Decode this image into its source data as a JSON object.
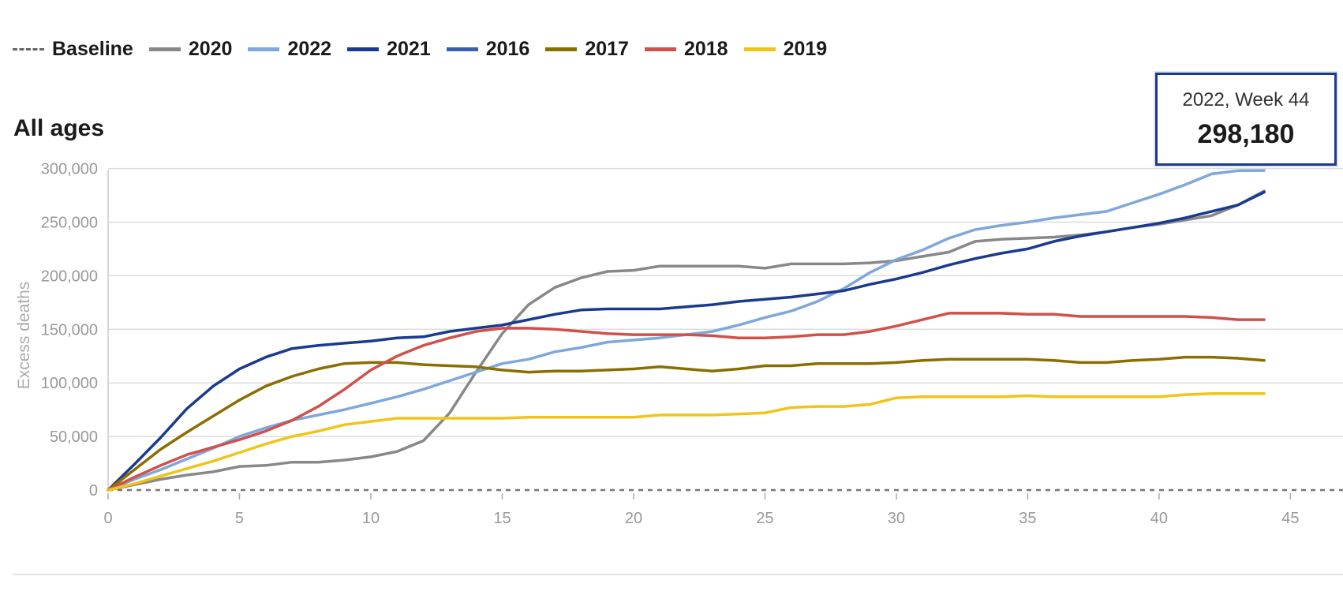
{
  "legend": [
    {
      "label": "Baseline",
      "style": "dotted",
      "color": "#666666"
    },
    {
      "label": "2020",
      "color": "#888888"
    },
    {
      "label": "2022",
      "color": "#7ea7dc"
    },
    {
      "label": "2021",
      "color": "#1a3a8f"
    },
    {
      "label": "2016",
      "color": "#3a5fb0"
    },
    {
      "label": "2017",
      "color": "#8b6e00"
    },
    {
      "label": "2018",
      "color": "#d0514a"
    },
    {
      "label": "2019",
      "color": "#f0c419"
    }
  ],
  "panel_title": "All ages",
  "tooltip": {
    "label": "2022, Week 44",
    "value": "298,180"
  },
  "chart_data": {
    "type": "line",
    "title": "All ages",
    "xlabel": "",
    "ylabel": "Excess deaths",
    "xlim": [
      0,
      47
    ],
    "ylim": [
      0,
      310000
    ],
    "xticks": [
      0,
      5,
      10,
      15,
      20,
      25,
      30,
      35,
      40,
      45
    ],
    "yticks": [
      0,
      50000,
      100000,
      150000,
      200000,
      250000,
      300000
    ],
    "ytick_labels": [
      "0",
      "50,000",
      "100,000",
      "150,000",
      "200,000",
      "250,000",
      "300,000"
    ],
    "baseline": 0,
    "grid": "horizontal",
    "legend_position": "top",
    "x": [
      0,
      1,
      2,
      3,
      4,
      5,
      6,
      7,
      8,
      9,
      10,
      11,
      12,
      13,
      14,
      15,
      16,
      17,
      18,
      19,
      20,
      21,
      22,
      23,
      24,
      25,
      26,
      27,
      28,
      29,
      30,
      31,
      32,
      33,
      34,
      35,
      36,
      37,
      38,
      39,
      40,
      41,
      42,
      43,
      44
    ],
    "series": [
      {
        "name": "2020",
        "color": "#888888",
        "values": [
          0,
          5000,
          10000,
          14000,
          17000,
          22000,
          23000,
          26000,
          26000,
          28000,
          31000,
          36000,
          46000,
          72000,
          110000,
          146000,
          173000,
          189000,
          198000,
          204000,
          205000,
          209000,
          209000,
          209000,
          209000,
          207000,
          211000,
          211000,
          211000,
          212000,
          214000,
          218000,
          222000,
          232000,
          234000,
          235000,
          236000,
          238000,
          241000,
          245000,
          248000,
          252000,
          256000,
          266000,
          279000
        ]
      },
      {
        "name": "2022",
        "color": "#7ea7dc",
        "values": [
          0,
          10000,
          19000,
          29000,
          39000,
          50000,
          58000,
          65000,
          70000,
          75000,
          81000,
          87000,
          94000,
          102000,
          110000,
          118000,
          122000,
          129000,
          133000,
          138000,
          140000,
          142000,
          145000,
          148000,
          154000,
          161000,
          167000,
          176000,
          188000,
          203000,
          215000,
          224000,
          235000,
          243000,
          247000,
          250000,
          254000,
          257000,
          260000,
          268000,
          276000,
          285000,
          295000,
          298000,
          298180
        ]
      },
      {
        "name": "2021",
        "color": "#1a3a8f",
        "values": [
          0,
          24000,
          49000,
          76000,
          97000,
          113000,
          124000,
          132000,
          135000,
          137000,
          139000,
          142000,
          143000,
          148000,
          151000,
          154000,
          159000,
          164000,
          168000,
          169000,
          169000,
          169000,
          171000,
          173000,
          176000,
          178000,
          180000,
          183000,
          186000,
          192000,
          197000,
          203000,
          210000,
          216000,
          221000,
          225000,
          232000,
          237000,
          241000,
          245000,
          249000,
          254000,
          260000,
          266000,
          278000
        ]
      },
      {
        "name": "2017",
        "color": "#8b6e00",
        "values": [
          0,
          19000,
          38000,
          54000,
          69000,
          84000,
          97000,
          106000,
          113000,
          118000,
          119000,
          119000,
          117000,
          116000,
          115000,
          112000,
          110000,
          111000,
          111000,
          112000,
          113000,
          115000,
          113000,
          111000,
          113000,
          116000,
          116000,
          118000,
          118000,
          118000,
          119000,
          121000,
          122000,
          122000,
          122000,
          122000,
          121000,
          119000,
          119000,
          121000,
          122000,
          124000,
          124000,
          123000,
          121000
        ]
      },
      {
        "name": "2018",
        "color": "#d0514a",
        "values": [
          0,
          12000,
          23000,
          33000,
          40000,
          47000,
          55000,
          65000,
          78000,
          94000,
          112000,
          125000,
          135000,
          142000,
          148000,
          151000,
          151000,
          150000,
          148000,
          146000,
          145000,
          145000,
          145000,
          144000,
          142000,
          142000,
          143000,
          145000,
          145000,
          148000,
          153000,
          159000,
          165000,
          165000,
          165000,
          164000,
          164000,
          162000,
          162000,
          162000,
          162000,
          162000,
          161000,
          159000,
          159000
        ]
      },
      {
        "name": "2019",
        "color": "#f0c419",
        "values": [
          0,
          6000,
          13000,
          20000,
          27000,
          35000,
          43000,
          50000,
          55000,
          61000,
          64000,
          67000,
          67000,
          67000,
          67000,
          67000,
          68000,
          68000,
          68000,
          68000,
          68000,
          70000,
          70000,
          70000,
          71000,
          72000,
          77000,
          78000,
          78000,
          80000,
          86000,
          87000,
          87000,
          87000,
          87000,
          88000,
          87000,
          87000,
          87000,
          87000,
          87000,
          89000,
          90000,
          90000,
          90000
        ]
      }
    ]
  }
}
